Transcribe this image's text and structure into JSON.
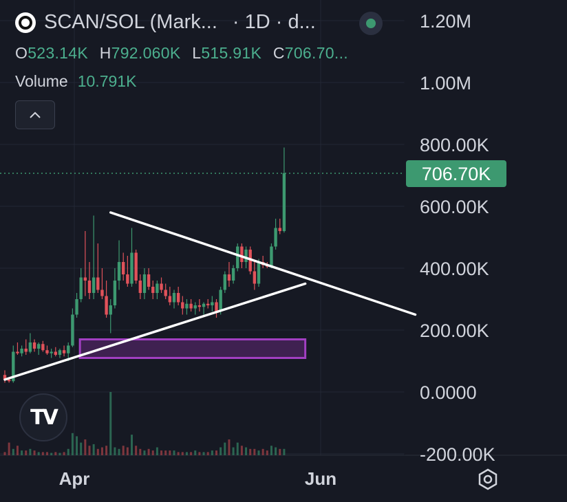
{
  "header": {
    "symbol": "SCAN/SOL (Mark...",
    "interval": "· 1D · d...",
    "ohlc": [
      {
        "key": "O",
        "value": "523.14K"
      },
      {
        "key": "H",
        "value": "792.060K"
      },
      {
        "key": "L",
        "value": "515.91K"
      },
      {
        "key": "C",
        "value": "706.70..."
      }
    ],
    "volume_label": "Volume",
    "volume_value": "10.791K"
  },
  "colors": {
    "background": "#161923",
    "up": "#3d9970",
    "down": "#e0525a",
    "price_tag": "#3d9970",
    "trendline": "#ffffff",
    "zone": "#a23fc2"
  },
  "icons": [
    "chevron-up-icon",
    "tradingview-logo-icon",
    "settings-hexagon-icon",
    "status-dot-icon"
  ],
  "chart_data": {
    "type": "candlestick",
    "title": "SCAN/SOL (Mark...",
    "ylim": [
      -200000,
      1250000
    ],
    "y_ticks": [
      "1.20M",
      "1.00M",
      "800.00K",
      "600.00K",
      "400.00K",
      "200.00K",
      "0.0000",
      "-200.00K"
    ],
    "y_tick_values": [
      1200000,
      1000000,
      800000,
      600000,
      400000,
      200000,
      0,
      -200000
    ],
    "x_ticks": [
      "Apr",
      "Jun"
    ],
    "last_price": 706700,
    "last_price_label": "706.70K",
    "candles": [
      {
        "o": 55,
        "h": 70,
        "l": 30,
        "c": 40
      },
      {
        "o": 40,
        "h": 45,
        "l": 30,
        "c": 35
      },
      {
        "o": 35,
        "h": 150,
        "l": 30,
        "c": 130
      },
      {
        "o": 130,
        "h": 160,
        "l": 120,
        "c": 125
      },
      {
        "o": 125,
        "h": 150,
        "l": 115,
        "c": 140
      },
      {
        "o": 140,
        "h": 170,
        "l": 120,
        "c": 130
      },
      {
        "o": 130,
        "h": 190,
        "l": 125,
        "c": 160
      },
      {
        "o": 160,
        "h": 170,
        "l": 130,
        "c": 140
      },
      {
        "o": 140,
        "h": 160,
        "l": 120,
        "c": 155
      },
      {
        "o": 155,
        "h": 165,
        "l": 130,
        "c": 135
      },
      {
        "o": 135,
        "h": 150,
        "l": 120,
        "c": 125
      },
      {
        "o": 125,
        "h": 140,
        "l": 110,
        "c": 130
      },
      {
        "o": 130,
        "h": 145,
        "l": 115,
        "c": 120
      },
      {
        "o": 120,
        "h": 140,
        "l": 110,
        "c": 135
      },
      {
        "o": 135,
        "h": 150,
        "l": 115,
        "c": 125
      },
      {
        "o": 125,
        "h": 160,
        "l": 100,
        "c": 150
      },
      {
        "o": 150,
        "h": 270,
        "l": 145,
        "c": 250
      },
      {
        "o": 250,
        "h": 320,
        "l": 240,
        "c": 300
      },
      {
        "o": 300,
        "h": 400,
        "l": 290,
        "c": 370
      },
      {
        "o": 370,
        "h": 520,
        "l": 310,
        "c": 360
      },
      {
        "o": 360,
        "h": 420,
        "l": 300,
        "c": 320
      },
      {
        "o": 320,
        "h": 570,
        "l": 300,
        "c": 370
      },
      {
        "o": 370,
        "h": 480,
        "l": 320,
        "c": 330
      },
      {
        "o": 330,
        "h": 400,
        "l": 300,
        "c": 310
      },
      {
        "o": 310,
        "h": 360,
        "l": 240,
        "c": 250
      },
      {
        "o": 250,
        "h": 300,
        "l": 190,
        "c": 280
      },
      {
        "o": 280,
        "h": 400,
        "l": 270,
        "c": 360
      },
      {
        "o": 360,
        "h": 490,
        "l": 330,
        "c": 420
      },
      {
        "o": 420,
        "h": 450,
        "l": 360,
        "c": 380
      },
      {
        "o": 380,
        "h": 440,
        "l": 340,
        "c": 350
      },
      {
        "o": 350,
        "h": 530,
        "l": 340,
        "c": 450
      },
      {
        "o": 450,
        "h": 460,
        "l": 350,
        "c": 360
      },
      {
        "o": 360,
        "h": 380,
        "l": 300,
        "c": 320
      },
      {
        "o": 320,
        "h": 400,
        "l": 300,
        "c": 380
      },
      {
        "o": 380,
        "h": 400,
        "l": 330,
        "c": 340
      },
      {
        "o": 340,
        "h": 360,
        "l": 300,
        "c": 320
      },
      {
        "o": 320,
        "h": 360,
        "l": 300,
        "c": 350
      },
      {
        "o": 350,
        "h": 370,
        "l": 320,
        "c": 330
      },
      {
        "o": 330,
        "h": 350,
        "l": 300,
        "c": 310
      },
      {
        "o": 310,
        "h": 340,
        "l": 280,
        "c": 290
      },
      {
        "o": 290,
        "h": 330,
        "l": 270,
        "c": 320
      },
      {
        "o": 320,
        "h": 340,
        "l": 280,
        "c": 290
      },
      {
        "o": 290,
        "h": 310,
        "l": 250,
        "c": 270
      },
      {
        "o": 270,
        "h": 300,
        "l": 250,
        "c": 285
      },
      {
        "o": 285,
        "h": 300,
        "l": 260,
        "c": 270
      },
      {
        "o": 270,
        "h": 290,
        "l": 250,
        "c": 280
      },
      {
        "o": 280,
        "h": 300,
        "l": 260,
        "c": 275
      },
      {
        "o": 275,
        "h": 290,
        "l": 250,
        "c": 285
      },
      {
        "o": 285,
        "h": 300,
        "l": 270,
        "c": 280
      },
      {
        "o": 280,
        "h": 310,
        "l": 260,
        "c": 290
      },
      {
        "o": 290,
        "h": 300,
        "l": 240,
        "c": 260
      },
      {
        "o": 260,
        "h": 340,
        "l": 250,
        "c": 330
      },
      {
        "o": 330,
        "h": 390,
        "l": 320,
        "c": 380
      },
      {
        "o": 380,
        "h": 420,
        "l": 340,
        "c": 360
      },
      {
        "o": 360,
        "h": 410,
        "l": 350,
        "c": 400
      },
      {
        "o": 400,
        "h": 480,
        "l": 390,
        "c": 470
      },
      {
        "o": 470,
        "h": 480,
        "l": 400,
        "c": 420
      },
      {
        "o": 420,
        "h": 470,
        "l": 400,
        "c": 460
      },
      {
        "o": 460,
        "h": 470,
        "l": 380,
        "c": 390
      },
      {
        "o": 390,
        "h": 420,
        "l": 330,
        "c": 350
      },
      {
        "o": 350,
        "h": 430,
        "l": 340,
        "c": 420
      },
      {
        "o": 420,
        "h": 440,
        "l": 400,
        "c": 410
      },
      {
        "o": 410,
        "h": 420,
        "l": 400,
        "c": 405
      },
      {
        "o": 405,
        "h": 480,
        "l": 400,
        "c": 470
      },
      {
        "o": 470,
        "h": 560,
        "l": 460,
        "c": 530
      },
      {
        "o": 530,
        "h": 560,
        "l": 510,
        "c": 520
      },
      {
        "o": 520,
        "h": 790,
        "l": 515,
        "c": 707
      }
    ],
    "candle_units": "thousands",
    "volume": [
      20,
      80,
      40,
      60,
      30,
      30,
      40,
      30,
      20,
      20,
      20,
      15,
      20,
      15,
      20,
      40,
      140,
      120,
      80,
      100,
      60,
      70,
      40,
      50,
      60,
      400,
      50,
      40,
      60,
      50,
      130,
      60,
      40,
      30,
      40,
      30,
      50,
      30,
      30,
      30,
      30,
      20,
      20,
      20,
      20,
      30,
      20,
      20,
      20,
      30,
      30,
      50,
      80,
      100,
      50,
      80,
      60,
      50,
      40,
      40,
      30,
      40,
      30,
      60,
      50,
      40,
      40
    ],
    "trendlines": [
      {
        "name": "descending",
        "from": {
          "bar": 25,
          "value": 580
        },
        "to": {
          "bar": 97,
          "value": 250
        }
      },
      {
        "name": "ascending",
        "from": {
          "bar": 0,
          "value": 40
        },
        "to": {
          "bar": 71,
          "value": 350
        }
      }
    ],
    "zone": {
      "from_bar": 21,
      "to_bar": 71,
      "low": 110,
      "high": 170
    }
  }
}
